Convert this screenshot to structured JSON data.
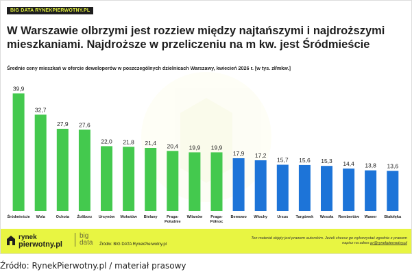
{
  "header": {
    "badge": "BIG DATA RYNEKPIERWOTNY.PL",
    "title": "W Warszawie olbrzymi jest rozziew między najtańszymi i najdroższymi mieszkaniami. Najdroższe w przeliczeniu na m kw. jest Śródmieście",
    "subtitle": "Średnie ceny mieszkań w ofercie deweloperów w poszczególnych dzielnicach Warszawy, kwiecień 2026 r. [w tys. zł/mkw.]"
  },
  "chart_data": {
    "type": "bar",
    "categories": [
      "Śródmieście",
      "Wola",
      "Ochota",
      "Żoliborz",
      "Ursynów",
      "Mokotów",
      "Bielany",
      "Praga-Południe",
      "Wilanów",
      "Praga-Północ",
      "Bemowo",
      "Włochy",
      "Ursus",
      "Targówek",
      "Wesoła",
      "Rembertów",
      "Wawer",
      "Białołęka"
    ],
    "category_lines": [
      [
        "Śródmieście"
      ],
      [
        "Wola"
      ],
      [
        "Ochota"
      ],
      [
        "Żoliborz"
      ],
      [
        "Ursynów"
      ],
      [
        "Mokotów"
      ],
      [
        "Bielany"
      ],
      [
        "Praga-",
        "Południe"
      ],
      [
        "Wilanów"
      ],
      [
        "Praga-",
        "Północ"
      ],
      [
        "Bemowo"
      ],
      [
        "Włochy"
      ],
      [
        "Ursus"
      ],
      [
        "Targówek"
      ],
      [
        "Wesoła"
      ],
      [
        "Rembertów"
      ],
      [
        "Wawer"
      ],
      [
        "Białołęka"
      ]
    ],
    "values": [
      39.9,
      32.7,
      27.9,
      27.6,
      22.0,
      21.8,
      21.4,
      20.4,
      19.9,
      19.9,
      17.9,
      17.2,
      15.7,
      15.6,
      15.3,
      14.4,
      13.8,
      13.6
    ],
    "value_labels": [
      "39,9",
      "32,7",
      "27,9",
      "27,6",
      "22,0",
      "21,8",
      "21,4",
      "20,4",
      "19,9",
      "19,9",
      "17,9",
      "17,2",
      "15,7",
      "15,6",
      "15,3",
      "14,4",
      "13,8",
      "13,6"
    ],
    "ylim": [
      0,
      40
    ],
    "colors": {
      "green": "#44c94e",
      "blue": "#1d74d8"
    },
    "blue_categories": [
      "Bemowo",
      "Włochy",
      "Ursus",
      "Targówek",
      "Wesoła",
      "Rembertów",
      "Wawer",
      "Białołęka"
    ]
  },
  "footer": {
    "logo_line1": "rynek",
    "logo_line2": "pierwotny.pl",
    "bigdata_line1": "big",
    "bigdata_line2": "data",
    "source": "Źródło: BIG DATA RynekPierwotny.pl",
    "legal_text": "Ten materiał objęty jest prawem autorskim. Jeżeli chcesz go wykorzystać zgodnie z prawem napisz na adres",
    "legal_link": "pr@rynekpierwotny.pl",
    "bg_color": "#e8f542"
  },
  "caption": "Źródło: RynekPierwotny.pl / materiał prasowy"
}
